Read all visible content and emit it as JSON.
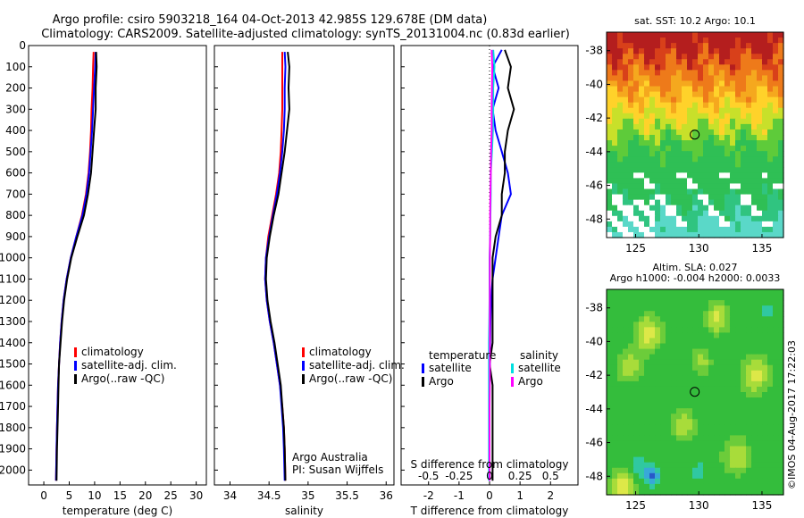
{
  "header": {
    "line1": "Argo profile: csiro 5903218_164 04-Oct-2013 42.985S 129.678E (DM data)",
    "line2": "Climatology: CARS2009. Satellite-adjusted climatology: synTS_20131004.nc (0.83d earlier)"
  },
  "stamp": "©IMOS 04-Aug-2017 17:22:03",
  "colors": {
    "climatology": "#ff0000",
    "satellite": "#0000ff",
    "argo": "#000000",
    "sat_salinity": "#00e0e0",
    "argo_salinity": "#ff00ff"
  },
  "chart_data": [
    {
      "type": "line",
      "xlabel": "temperature (deg C)",
      "xlim": [
        -3,
        32
      ],
      "xticks": [
        0,
        5,
        10,
        15,
        20,
        25,
        30
      ],
      "ylim": [
        2070,
        0
      ],
      "yticks": [
        0,
        100,
        200,
        300,
        400,
        500,
        600,
        700,
        800,
        900,
        1000,
        1100,
        1200,
        1300,
        1400,
        1500,
        1600,
        1700,
        1800,
        1900,
        2000
      ],
      "legend": {
        "placement": "lower-middle",
        "entries": [
          "climatology",
          "satellite-adj. clim.",
          "Argo(..raw -QC)"
        ]
      },
      "series": [
        {
          "name": "climatology",
          "color": "#ff0000",
          "x": [
            9.8,
            9.7,
            9.6,
            9.4,
            9.3,
            9.1,
            8.8,
            8.3,
            7.5,
            6.4,
            5.3,
            4.5,
            3.9,
            3.5,
            3.2,
            3.0,
            2.8,
            2.7,
            2.6,
            2.5,
            2.4
          ],
          "y": [
            30,
            100,
            200,
            300,
            400,
            500,
            600,
            700,
            800,
            900,
            1000,
            1100,
            1200,
            1300,
            1400,
            1500,
            1600,
            1700,
            1800,
            1900,
            2050
          ]
        },
        {
          "name": "satellite-adj. clim.",
          "color": "#0000ff",
          "x": [
            10.2,
            10.1,
            9.9,
            9.7,
            9.5,
            9.2,
            8.9,
            8.4,
            7.6,
            6.4,
            5.3,
            4.5,
            3.9,
            3.5,
            3.2,
            3.0,
            2.8,
            2.7,
            2.6,
            2.5,
            2.4
          ],
          "y": [
            30,
            100,
            200,
            300,
            400,
            500,
            600,
            700,
            800,
            900,
            1000,
            1100,
            1200,
            1300,
            1400,
            1500,
            1600,
            1700,
            1800,
            1900,
            2050
          ]
        },
        {
          "name": "Argo(..raw -QC)",
          "color": "#000000",
          "x": [
            10.3,
            10.4,
            10.2,
            10.2,
            9.9,
            9.6,
            9.3,
            8.7,
            7.9,
            6.6,
            5.4,
            4.6,
            4.0,
            3.6,
            3.3,
            3.0,
            2.9,
            2.8,
            2.7,
            2.6,
            2.5
          ],
          "y": [
            30,
            100,
            200,
            300,
            400,
            500,
            600,
            700,
            800,
            900,
            1000,
            1100,
            1200,
            1300,
            1400,
            1500,
            1600,
            1700,
            1800,
            1900,
            2050
          ]
        }
      ]
    },
    {
      "type": "line",
      "xlabel": "salinity",
      "xlim": [
        33.8,
        36.1
      ],
      "xticks": [
        34,
        34.5,
        35,
        35.5,
        36
      ],
      "ylim": [
        2070,
        0
      ],
      "legend": {
        "placement": "lower-middle",
        "entries": [
          "climatology",
          "satellite-adj. clim.",
          "Argo(..raw -QC)"
        ]
      },
      "annotations": [
        "Argo Australia",
        "PI: Susan Wijffels"
      ],
      "series": [
        {
          "name": "climatology",
          "color": "#ff0000",
          "x": [
            34.67,
            34.67,
            34.67,
            34.67,
            34.66,
            34.65,
            34.63,
            34.59,
            34.54,
            34.49,
            34.46,
            34.45,
            34.47,
            34.51,
            34.56,
            34.6,
            34.64,
            34.67,
            34.69,
            34.7,
            34.71
          ],
          "y": [
            30,
            100,
            200,
            300,
            400,
            500,
            600,
            700,
            800,
            900,
            1000,
            1100,
            1200,
            1300,
            1400,
            1500,
            1600,
            1700,
            1800,
            1900,
            2050
          ]
        },
        {
          "name": "satellite-adj. clim.",
          "color": "#0000ff",
          "x": [
            34.7,
            34.71,
            34.7,
            34.7,
            34.69,
            34.67,
            34.64,
            34.6,
            34.55,
            34.5,
            34.46,
            34.45,
            34.47,
            34.51,
            34.56,
            34.6,
            34.64,
            34.66,
            34.68,
            34.69,
            34.7
          ],
          "y": [
            30,
            100,
            200,
            300,
            400,
            500,
            600,
            700,
            800,
            900,
            1000,
            1100,
            1200,
            1300,
            1400,
            1500,
            1600,
            1700,
            1800,
            1900,
            2050
          ]
        },
        {
          "name": "Argo(..raw -QC)",
          "color": "#000000",
          "x": [
            34.74,
            34.76,
            34.75,
            34.76,
            34.73,
            34.7,
            34.66,
            34.62,
            34.56,
            34.51,
            34.47,
            34.46,
            34.48,
            34.52,
            34.57,
            34.61,
            34.65,
            34.67,
            34.69,
            34.7,
            34.71
          ],
          "y": [
            30,
            100,
            200,
            300,
            400,
            500,
            600,
            700,
            800,
            900,
            1000,
            1100,
            1200,
            1300,
            1400,
            1500,
            1600,
            1700,
            1800,
            1900,
            2050
          ]
        }
      ]
    },
    {
      "type": "line",
      "xlabel": "T difference from climatology",
      "xlabel_top": "S difference from climatology",
      "xlim": [
        -2.9,
        2.9
      ],
      "xticks": [
        -2,
        -1,
        0,
        1,
        2
      ],
      "xticklabels": [
        "-2",
        "-1",
        "0",
        "1",
        "2"
      ],
      "xticks_top": [
        -2,
        -1,
        0,
        1,
        2
      ],
      "xticklabels_top": [
        "-0.5",
        "-0.25",
        "0",
        "0.25",
        "0.5"
      ],
      "ylim": [
        2070,
        0
      ],
      "legend": {
        "placement": "lower-middle",
        "titles": [
          "temperature",
          "salinity"
        ],
        "entries": [
          "satellite",
          "Argo",
          "satellite",
          "Argo"
        ]
      },
      "series": [
        {
          "name": "satellite",
          "group": "temperature",
          "color": "#0000ff",
          "x": [
            0.4,
            0.1,
            0.3,
            0.1,
            0.2,
            0.4,
            0.6,
            0.7,
            0.4,
            0.3,
            0.2,
            0.1,
            0.05,
            0.03,
            0.02,
            0.01,
            0.0,
            0.0,
            0.0,
            0.0,
            0.0
          ],
          "y": [
            20,
            100,
            200,
            300,
            400,
            500,
            600,
            700,
            800,
            900,
            1000,
            1100,
            1200,
            1300,
            1400,
            1500,
            1600,
            1700,
            1800,
            1900,
            2050
          ]
        },
        {
          "name": "Argo",
          "group": "temperature",
          "color": "#000000",
          "x": [
            0.5,
            0.7,
            0.6,
            0.8,
            0.6,
            0.5,
            0.5,
            0.4,
            0.4,
            0.2,
            0.1,
            0.1,
            0.1,
            0.1,
            0.1,
            0.0,
            0.1,
            0.1,
            0.1,
            0.1,
            0.1
          ],
          "y": [
            20,
            100,
            200,
            300,
            400,
            500,
            600,
            700,
            800,
            900,
            1000,
            1100,
            1200,
            1300,
            1400,
            1500,
            1600,
            1700,
            1800,
            1900,
            2050
          ]
        },
        {
          "name": "satellite",
          "group": "salinity",
          "color": "#00e0e0",
          "x": [
            0.12,
            0.16,
            0.12,
            0.12,
            0.11,
            0.08,
            0.04,
            0.04,
            0.03,
            0.02,
            0.0,
            0.0,
            0.0,
            -0.01,
            -0.02,
            -0.02,
            -0.02,
            -0.02,
            -0.02,
            -0.02,
            -0.02
          ],
          "y": [
            20,
            100,
            200,
            300,
            400,
            500,
            600,
            700,
            800,
            900,
            1000,
            1100,
            1200,
            1300,
            1400,
            1500,
            1600,
            1700,
            1800,
            1900,
            2050
          ]
        },
        {
          "name": "Argo",
          "group": "salinity",
          "color": "#ff00ff",
          "x": [
            0.07,
            0.09,
            0.08,
            0.07,
            0.07,
            0.05,
            0.04,
            0.03,
            0.02,
            0.02,
            0.01,
            0.01,
            0.01,
            0.01,
            0.01,
            0.01,
            0.01,
            0.0,
            0.0,
            0.0,
            0.0
          ],
          "y": [
            20,
            100,
            200,
            300,
            400,
            500,
            600,
            700,
            800,
            900,
            1000,
            1100,
            1200,
            1300,
            1400,
            1500,
            1600,
            1700,
            1800,
            1900,
            2050
          ]
        }
      ]
    },
    {
      "type": "heatmap",
      "title": "sat. SST: 10.2  Argo: 10.1",
      "xlim": [
        122.7,
        136.7
      ],
      "ylim": [
        -49.1,
        -36.9
      ],
      "xticks": [
        125,
        130,
        135
      ],
      "yticks": [
        -38,
        -40,
        -42,
        -44,
        -46,
        -48
      ],
      "marker": {
        "lon": 129.678,
        "lat": -42.985
      },
      "description": "SST field: warm (red/orange) north of ~41S, yellow band near 42S, green south, cyan patches and white missing data near 46-48S"
    },
    {
      "type": "heatmap",
      "title": "Altim. SLA: 0.027",
      "subtitle": "Argo h1000: -0.004 h2000: 0.0033",
      "xlim": [
        122.7,
        136.7
      ],
      "ylim": [
        -49.1,
        -36.9
      ],
      "xticks": [
        125,
        130,
        135
      ],
      "yticks": [
        -38,
        -40,
        -42,
        -44,
        -46,
        -48
      ],
      "marker": {
        "lon": 129.678,
        "lat": -42.985
      },
      "description": "sea level anomaly field: mostly green with yellow blobs, cyan/blue eddy near 126E 48S"
    }
  ]
}
